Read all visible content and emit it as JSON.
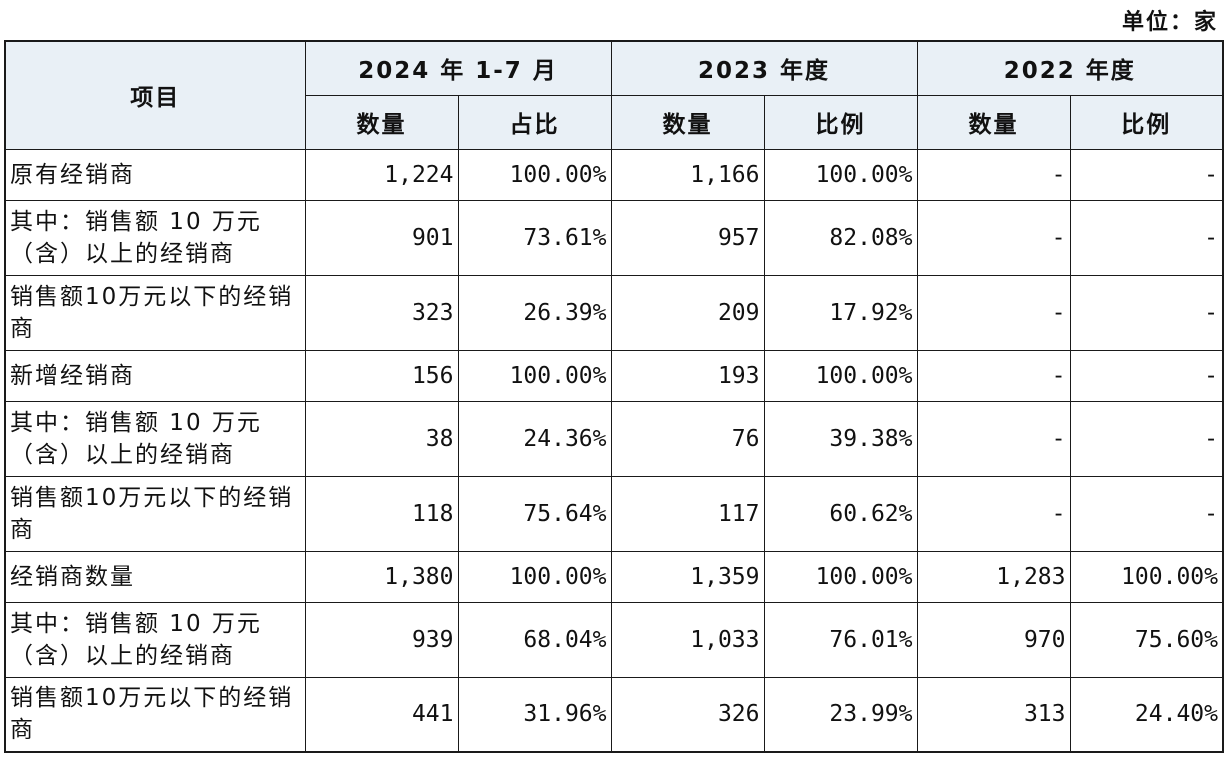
{
  "unit_label": "单位：家",
  "header": {
    "item": "项目",
    "periods": [
      "2024 年 1-7 月",
      "2023 年度",
      "2022 年度"
    ],
    "subheaders": [
      "数量",
      "占比",
      "数量",
      "比例",
      "数量",
      "比例"
    ]
  },
  "rows": [
    {
      "label": "原有经销商",
      "cells": [
        "1,224",
        "100.00%",
        "1,166",
        "100.00%",
        "-",
        "-"
      ]
    },
    {
      "label": "其中：销售额 10 万元（含）以上的经销商",
      "cells": [
        "901",
        "73.61%",
        "957",
        "82.08%",
        "-",
        "-"
      ]
    },
    {
      "label": "销售额10万元以下的经销商",
      "cells": [
        "323",
        "26.39%",
        "209",
        "17.92%",
        "-",
        "-"
      ]
    },
    {
      "label": "新增经销商",
      "cells": [
        "156",
        "100.00%",
        "193",
        "100.00%",
        "-",
        "-"
      ]
    },
    {
      "label": "其中：销售额 10 万元（含）以上的经销商",
      "cells": [
        "38",
        "24.36%",
        "76",
        "39.38%",
        "-",
        "-"
      ]
    },
    {
      "label": "销售额10万元以下的经销商",
      "cells": [
        "118",
        "75.64%",
        "117",
        "60.62%",
        "-",
        "-"
      ]
    },
    {
      "label": "经销商数量",
      "cells": [
        "1,380",
        "100.00%",
        "1,359",
        "100.00%",
        "1,283",
        "100.00%"
      ]
    },
    {
      "label": "其中：销售额 10 万元（含）以上的经销商",
      "cells": [
        "939",
        "68.04%",
        "1,033",
        "76.01%",
        "970",
        "75.60%"
      ]
    },
    {
      "label": "销售额10万元以下的经销商",
      "cells": [
        "441",
        "31.96%",
        "326",
        "23.99%",
        "313",
        "24.40%"
      ]
    }
  ]
}
